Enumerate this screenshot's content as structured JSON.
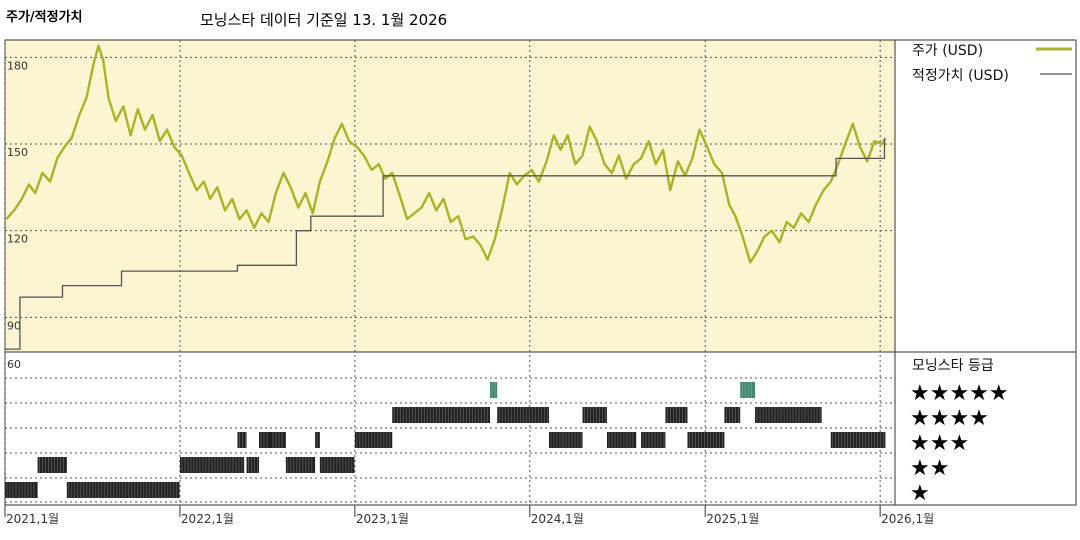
{
  "header": {
    "title": "주가/적정가치",
    "source": "모닝스타 데이터 기준일 13. 1월 2026"
  },
  "legend": {
    "price": "주가 (USD)",
    "fair_value": "적정가치 (USD)",
    "rating_title": "모닝스타 등급"
  },
  "colors": {
    "price": "#aab325",
    "fair_value": "#555555",
    "panel_bg": "#fbf5d2",
    "rating_bar": "#222222",
    "rating_five": "#3f8a6e"
  },
  "chart_data": [
    {
      "type": "line",
      "title": "주가/적정가치",
      "ylim": [
        78,
        186
      ],
      "yticks": [
        90,
        120,
        150,
        180
      ],
      "ytick_labels": [
        "90",
        "120",
        "150",
        "180"
      ],
      "xlim": [
        "2021-01-01",
        "2026-02-01"
      ],
      "xticks": [
        "2021-01-01",
        "2022-01-01",
        "2023-01-01",
        "2024-01-01",
        "2025-01-01",
        "2026-01-01"
      ],
      "xtick_labels": [
        "2021,1월",
        "2022,1월",
        "2023,1월",
        "2024,1월",
        "2025,1월",
        "2026,1월"
      ],
      "grid": true,
      "legend_position": "right",
      "series": [
        {
          "name": "주가 (USD)",
          "points": [
            [
              "2021-01-04",
              124
            ],
            [
              "2021-01-20",
              127
            ],
            [
              "2021-02-05",
              131
            ],
            [
              "2021-02-20",
              136
            ],
            [
              "2021-03-05",
              133
            ],
            [
              "2021-03-20",
              140
            ],
            [
              "2021-04-05",
              137
            ],
            [
              "2021-04-20",
              145
            ],
            [
              "2021-05-05",
              149
            ],
            [
              "2021-05-20",
              152
            ],
            [
              "2021-06-05",
              160
            ],
            [
              "2021-06-20",
              166
            ],
            [
              "2021-07-05",
              178
            ],
            [
              "2021-07-15",
              184
            ],
            [
              "2021-07-25",
              179
            ],
            [
              "2021-08-05",
              166
            ],
            [
              "2021-08-20",
              158
            ],
            [
              "2021-09-05",
              163
            ],
            [
              "2021-09-20",
              153
            ],
            [
              "2021-10-05",
              162
            ],
            [
              "2021-10-20",
              155
            ],
            [
              "2021-11-05",
              160
            ],
            [
              "2021-11-20",
              151
            ],
            [
              "2021-12-05",
              155
            ],
            [
              "2021-12-20",
              149
            ],
            [
              "2022-01-05",
              146
            ],
            [
              "2022-01-20",
              140
            ],
            [
              "2022-02-05",
              134
            ],
            [
              "2022-02-20",
              137
            ],
            [
              "2022-03-05",
              131
            ],
            [
              "2022-03-20",
              135
            ],
            [
              "2022-04-05",
              127
            ],
            [
              "2022-04-20",
              131
            ],
            [
              "2022-05-05",
              124
            ],
            [
              "2022-05-20",
              127
            ],
            [
              "2022-06-05",
              121
            ],
            [
              "2022-06-20",
              126
            ],
            [
              "2022-07-05",
              123
            ],
            [
              "2022-07-20",
              133
            ],
            [
              "2022-08-05",
              140
            ],
            [
              "2022-08-20",
              135
            ],
            [
              "2022-09-05",
              128
            ],
            [
              "2022-09-20",
              133
            ],
            [
              "2022-10-05",
              126
            ],
            [
              "2022-10-20",
              137
            ],
            [
              "2022-11-05",
              144
            ],
            [
              "2022-11-20",
              152
            ],
            [
              "2022-12-05",
              157
            ],
            [
              "2022-12-20",
              151
            ],
            [
              "2023-01-05",
              149
            ],
            [
              "2023-01-20",
              146
            ],
            [
              "2023-02-05",
              141
            ],
            [
              "2023-02-20",
              143
            ],
            [
              "2023-03-05",
              138
            ],
            [
              "2023-03-20",
              140
            ],
            [
              "2023-04-05",
              132
            ],
            [
              "2023-04-20",
              124
            ],
            [
              "2023-05-05",
              126
            ],
            [
              "2023-05-20",
              128
            ],
            [
              "2023-06-05",
              133
            ],
            [
              "2023-06-20",
              127
            ],
            [
              "2023-07-05",
              131
            ],
            [
              "2023-07-20",
              123
            ],
            [
              "2023-08-05",
              125
            ],
            [
              "2023-08-20",
              117
            ],
            [
              "2023-09-05",
              118
            ],
            [
              "2023-09-20",
              115
            ],
            [
              "2023-10-05",
              110
            ],
            [
              "2023-10-20",
              117
            ],
            [
              "2023-11-05",
              128
            ],
            [
              "2023-11-20",
              140
            ],
            [
              "2023-12-05",
              136
            ],
            [
              "2023-12-20",
              139
            ],
            [
              "2024-01-05",
              141
            ],
            [
              "2024-01-20",
              137
            ],
            [
              "2024-02-05",
              144
            ],
            [
              "2024-02-20",
              153
            ],
            [
              "2024-03-05",
              148
            ],
            [
              "2024-03-20",
              153
            ],
            [
              "2024-04-05",
              143
            ],
            [
              "2024-04-20",
              146
            ],
            [
              "2024-05-05",
              156
            ],
            [
              "2024-05-20",
              151
            ],
            [
              "2024-06-05",
              143
            ],
            [
              "2024-06-20",
              140
            ],
            [
              "2024-07-05",
              146
            ],
            [
              "2024-07-20",
              138
            ],
            [
              "2024-08-05",
              143
            ],
            [
              "2024-08-20",
              145
            ],
            [
              "2024-09-05",
              151
            ],
            [
              "2024-09-20",
              143
            ],
            [
              "2024-10-05",
              148
            ],
            [
              "2024-10-20",
              134
            ],
            [
              "2024-11-05",
              144
            ],
            [
              "2024-11-20",
              139
            ],
            [
              "2024-12-05",
              145
            ],
            [
              "2024-12-20",
              155
            ],
            [
              "2025-01-05",
              149
            ],
            [
              "2025-01-20",
              143
            ],
            [
              "2025-02-05",
              140
            ],
            [
              "2025-02-20",
              129
            ],
            [
              "2025-03-05",
              125
            ],
            [
              "2025-03-20",
              118
            ],
            [
              "2025-04-05",
              109
            ],
            [
              "2025-04-20",
              113
            ],
            [
              "2025-05-05",
              118
            ],
            [
              "2025-05-20",
              120
            ],
            [
              "2025-06-05",
              116
            ],
            [
              "2025-06-20",
              123
            ],
            [
              "2025-07-05",
              121
            ],
            [
              "2025-07-20",
              126
            ],
            [
              "2025-08-05",
              123
            ],
            [
              "2025-08-20",
              129
            ],
            [
              "2025-09-05",
              134
            ],
            [
              "2025-09-20",
              137
            ],
            [
              "2025-10-05",
              143
            ],
            [
              "2025-10-20",
              150
            ],
            [
              "2025-11-05",
              157
            ],
            [
              "2025-11-20",
              149
            ],
            [
              "2025-12-05",
              144
            ],
            [
              "2025-12-20",
              151
            ],
            [
              "2026-01-05",
              150
            ],
            [
              "2026-01-12",
              152
            ]
          ]
        },
        {
          "name": "적정가치 (USD)",
          "step": true,
          "points": [
            [
              "2021-01-01",
              79
            ],
            [
              "2021-02-01",
              79
            ],
            [
              "2021-02-01",
              97
            ],
            [
              "2021-05-01",
              97
            ],
            [
              "2021-05-01",
              101
            ],
            [
              "2021-09-01",
              101
            ],
            [
              "2021-09-01",
              106
            ],
            [
              "2022-05-01",
              106
            ],
            [
              "2022-05-01",
              108
            ],
            [
              "2022-09-01",
              108
            ],
            [
              "2022-09-01",
              120
            ],
            [
              "2022-10-01",
              120
            ],
            [
              "2022-10-01",
              125
            ],
            [
              "2023-03-01",
              125
            ],
            [
              "2023-03-01",
              139
            ],
            [
              "2025-10-01",
              139
            ],
            [
              "2025-10-01",
              145
            ],
            [
              "2026-01-10",
              145
            ],
            [
              "2026-01-10",
              152
            ]
          ]
        }
      ]
    },
    {
      "type": "bar",
      "title": "모닝스타 등급",
      "ytick_labels": [
        "60"
      ],
      "rating_labels": [
        "★★★★★",
        "★★★★",
        "★★★",
        "★★",
        "★"
      ],
      "segments": [
        {
          "rating": 1,
          "start": "2021-01-01",
          "end": "2021-03-10"
        },
        {
          "rating": 2,
          "start": "2021-03-10",
          "end": "2021-05-10"
        },
        {
          "rating": 1,
          "start": "2021-05-10",
          "end": "2021-12-31"
        },
        {
          "rating": 2,
          "start": "2022-01-01",
          "end": "2022-05-15"
        },
        {
          "rating": 2,
          "start": "2022-05-20",
          "end": "2022-06-15"
        },
        {
          "rating": 3,
          "start": "2022-05-01",
          "end": "2022-05-20"
        },
        {
          "rating": 3,
          "start": "2022-06-15",
          "end": "2022-07-10"
        },
        {
          "rating": 3,
          "start": "2022-07-10",
          "end": "2022-08-10"
        },
        {
          "rating": 2,
          "start": "2022-08-10",
          "end": "2022-10-10"
        },
        {
          "rating": 3,
          "start": "2022-10-10",
          "end": "2022-10-20"
        },
        {
          "rating": 2,
          "start": "2022-10-20",
          "end": "2022-12-31"
        },
        {
          "rating": 3,
          "start": "2023-01-01",
          "end": "2023-03-20"
        },
        {
          "rating": 4,
          "start": "2023-03-20",
          "end": "2023-10-10"
        },
        {
          "rating": 5,
          "start": "2023-10-10",
          "end": "2023-10-25"
        },
        {
          "rating": 4,
          "start": "2023-10-25",
          "end": "2024-02-10"
        },
        {
          "rating": 3,
          "start": "2024-02-10",
          "end": "2024-04-20"
        },
        {
          "rating": 4,
          "start": "2024-04-20",
          "end": "2024-06-10"
        },
        {
          "rating": 3,
          "start": "2024-06-10",
          "end": "2024-08-10"
        },
        {
          "rating": 3,
          "start": "2024-08-20",
          "end": "2024-10-10"
        },
        {
          "rating": 4,
          "start": "2024-10-10",
          "end": "2024-11-25"
        },
        {
          "rating": 3,
          "start": "2024-11-25",
          "end": "2025-02-10"
        },
        {
          "rating": 4,
          "start": "2025-02-10",
          "end": "2025-03-15"
        },
        {
          "rating": 5,
          "start": "2025-03-15",
          "end": "2025-04-15"
        },
        {
          "rating": 4,
          "start": "2025-04-15",
          "end": "2025-09-01"
        },
        {
          "rating": 3,
          "start": "2025-09-20",
          "end": "2026-01-12"
        }
      ]
    }
  ]
}
